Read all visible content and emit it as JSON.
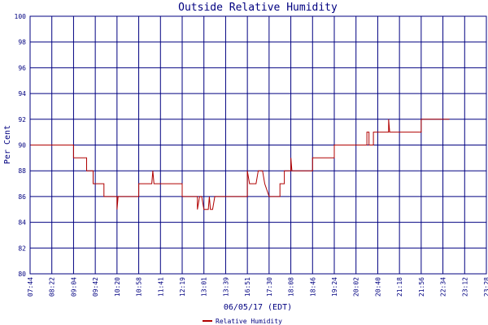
{
  "chart_data": {
    "type": "line",
    "title": "Outside Relative Humidity",
    "xlabel": "06/05/17 (EDT)",
    "ylabel": "Per Cent",
    "ylim": [
      80,
      100
    ],
    "y_ticks": [
      "80",
      "82",
      "84",
      "86",
      "88",
      "90",
      "92",
      "94",
      "96",
      "98",
      "100"
    ],
    "x_ticks": [
      "07:44",
      "08:22",
      "09:04",
      "09:42",
      "10:20",
      "10:58",
      "11:41",
      "12:19",
      "13:01",
      "13:39",
      "16:51",
      "17:30",
      "18:08",
      "18:46",
      "19:24",
      "20:02",
      "20:40",
      "21:18",
      "21:56",
      "22:34",
      "23:12",
      "23:28"
    ],
    "grid": true,
    "legend_position": "bottom-center",
    "colors": {
      "line": "#b00000",
      "grid": "#000080",
      "text": "#000080"
    },
    "series": [
      {
        "name": "Relative Humidity",
        "points": [
          [
            0,
            90
          ],
          [
            2,
            90
          ],
          [
            2,
            89
          ],
          [
            2.6,
            89
          ],
          [
            2.6,
            88
          ],
          [
            2.9,
            88
          ],
          [
            2.9,
            87
          ],
          [
            3.4,
            87
          ],
          [
            3.4,
            86
          ],
          [
            4,
            86
          ],
          [
            4,
            85
          ],
          [
            4.05,
            86
          ],
          [
            5,
            86
          ],
          [
            5,
            87
          ],
          [
            5.6,
            87
          ],
          [
            5.65,
            88
          ],
          [
            5.7,
            87
          ],
          [
            7,
            87
          ],
          [
            7,
            86
          ],
          [
            7.7,
            86
          ],
          [
            7.7,
            85
          ],
          [
            7.8,
            86
          ],
          [
            7.9,
            86
          ],
          [
            8,
            85
          ],
          [
            8.2,
            85
          ],
          [
            8.25,
            86
          ],
          [
            8.3,
            85
          ],
          [
            8.4,
            85
          ],
          [
            8.5,
            86
          ],
          [
            9,
            86
          ],
          [
            10,
            86
          ],
          [
            10,
            88
          ],
          [
            10.1,
            87
          ],
          [
            10.4,
            87
          ],
          [
            10.5,
            88
          ],
          [
            10.7,
            88
          ],
          [
            10.8,
            87
          ],
          [
            11,
            86
          ],
          [
            11.5,
            86
          ],
          [
            11.5,
            87
          ],
          [
            11.7,
            87
          ],
          [
            11.7,
            88
          ],
          [
            12,
            88
          ],
          [
            12,
            89
          ],
          [
            12.05,
            88
          ],
          [
            13,
            88
          ],
          [
            13,
            89
          ],
          [
            14,
            89
          ],
          [
            14,
            90
          ],
          [
            15.5,
            90
          ],
          [
            15.5,
            91
          ],
          [
            15.6,
            91
          ],
          [
            15.6,
            90
          ],
          [
            15.8,
            90
          ],
          [
            15.8,
            91
          ],
          [
            16.5,
            91
          ],
          [
            16.5,
            92
          ],
          [
            16.55,
            91
          ],
          [
            18,
            91
          ],
          [
            18,
            92
          ],
          [
            19.3,
            92
          ]
        ]
      }
    ]
  }
}
